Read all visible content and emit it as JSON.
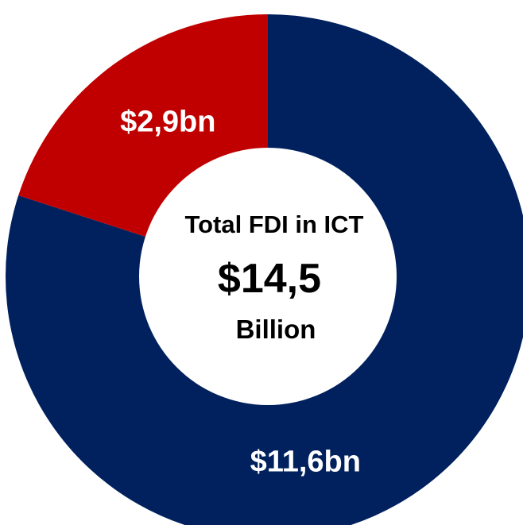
{
  "chart_data": {
    "type": "pie",
    "categories": [
      "",
      ""
    ],
    "values": [
      11.6,
      2.9
    ],
    "data_labels": [
      "$11,6bn",
      "$2,9bn"
    ],
    "colors": [
      "#00215E",
      "#C00000"
    ],
    "center": {
      "line1": "Total FDI in ICT",
      "line2": "$14,5",
      "line3": "Billion"
    }
  }
}
